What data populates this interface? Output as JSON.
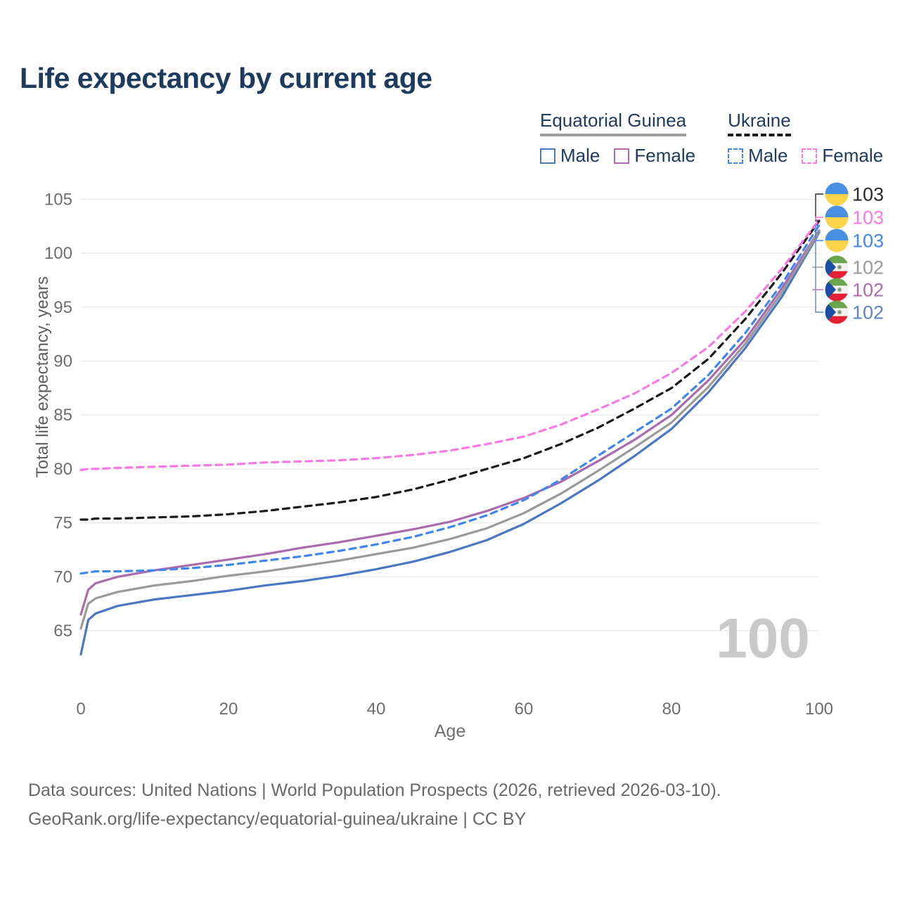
{
  "colors": {
    "background": "#ffffff",
    "title_text": "#1d3a5f",
    "legend_text": "#1e3a5f",
    "tick_text": "#6e6e6e",
    "gridline": "#ececec",
    "watermark_text": "#c9c9c9",
    "footer_text": "#696969"
  },
  "legend": {
    "groups": [
      {
        "label": "Equatorial Guinea",
        "line_style": "solid",
        "line_color": "#9e9e9e",
        "items": [
          {
            "label": "Male",
            "swatch_color": "#4a77c4",
            "swatch_style": "solid"
          },
          {
            "label": "Female",
            "swatch_color": "#b06ab0",
            "swatch_style": "solid"
          }
        ]
      },
      {
        "label": "Ukraine",
        "line_style": "dashed",
        "line_color": "#1a1a1a",
        "items": [
          {
            "label": "Male",
            "swatch_color": "#3f86f0",
            "swatch_style": "dashed"
          },
          {
            "label": "Female",
            "swatch_color": "#fa78e2",
            "swatch_style": "dashed"
          }
        ]
      }
    ]
  },
  "flags": {
    "ukraine": {
      "blue": "#4a90e2",
      "yellow": "#fbd44b"
    },
    "equatorial_guinea": {
      "green": "#6ba54a",
      "white": "#f2f2f2",
      "red": "#e32135",
      "blue": "#1b4fa5",
      "emblem": "#a8b098",
      "emblem_dark": "#6e7f5e"
    }
  },
  "chart_data": {
    "type": "line",
    "title": "Life expectancy by current age",
    "xlabel": "Age",
    "ylabel": "Total life expectancy, years",
    "xlim": [
      0,
      100
    ],
    "ylim": [
      62,
      106.5
    ],
    "x_ticks": [
      0,
      20,
      40,
      60,
      80,
      100
    ],
    "y_ticks": [
      65,
      70,
      75,
      80,
      85,
      90,
      95,
      100,
      105
    ],
    "grid": "horizontal",
    "legend_position": "top-right",
    "age_watermark": "100",
    "x": [
      0,
      1,
      2,
      5,
      10,
      15,
      20,
      25,
      30,
      35,
      40,
      45,
      50,
      55,
      60,
      65,
      70,
      75,
      80,
      85,
      90,
      95,
      100
    ],
    "series": [
      {
        "name": "Ukraine Female",
        "country": "Ukraine",
        "sex": "Female",
        "style": "dashed",
        "color": "#fa78e2",
        "values": [
          79.9,
          80.0,
          80.0,
          80.1,
          80.2,
          80.3,
          80.4,
          80.6,
          80.7,
          80.8,
          81.0,
          81.3,
          81.7,
          82.3,
          83.0,
          84.1,
          85.5,
          87.0,
          88.9,
          91.3,
          94.6,
          98.6,
          103.1
        ]
      },
      {
        "name": "Ukraine Total",
        "country": "Ukraine",
        "sex": "Total",
        "style": "dashed",
        "color": "#1a1a1a",
        "values": [
          75.3,
          75.3,
          75.4,
          75.4,
          75.5,
          75.6,
          75.8,
          76.1,
          76.5,
          76.9,
          77.4,
          78.1,
          79.0,
          80.0,
          81.0,
          82.3,
          83.8,
          85.6,
          87.5,
          90.2,
          93.9,
          98.2,
          103.0
        ]
      },
      {
        "name": "Ukraine Male",
        "country": "Ukraine",
        "sex": "Male",
        "style": "dashed",
        "color": "#3f86f0",
        "values": [
          70.3,
          70.4,
          70.5,
          70.5,
          70.6,
          70.8,
          71.1,
          71.5,
          71.9,
          72.4,
          73.0,
          73.7,
          74.6,
          75.7,
          77.1,
          79.0,
          81.2,
          83.4,
          85.6,
          88.7,
          92.6,
          97.2,
          102.6
        ]
      },
      {
        "name": "Equatorial Guinea Total",
        "country": "Equatorial Guinea",
        "sex": "Total",
        "style": "solid",
        "color": "#9a9a9a",
        "values": [
          65.2,
          67.5,
          68.0,
          68.6,
          69.2,
          69.6,
          70.1,
          70.5,
          71.0,
          71.5,
          72.1,
          72.7,
          73.5,
          74.5,
          75.9,
          77.7,
          79.8,
          82.0,
          84.3,
          87.6,
          91.6,
          96.4,
          102.0
        ]
      },
      {
        "name": "Equatorial Guinea Female",
        "country": "Equatorial Guinea",
        "sex": "Female",
        "style": "solid",
        "color": "#a96bad",
        "values": [
          66.5,
          68.8,
          69.4,
          70.0,
          70.6,
          71.1,
          71.6,
          72.1,
          72.7,
          73.2,
          73.8,
          74.4,
          75.1,
          76.1,
          77.3,
          78.8,
          80.7,
          82.7,
          85.0,
          88.2,
          92.0,
          96.8,
          102.1
        ]
      },
      {
        "name": "Equatorial Guinea Male",
        "country": "Equatorial Guinea",
        "sex": "Male",
        "style": "solid",
        "color": "#4a77c4",
        "values": [
          62.8,
          66.0,
          66.6,
          67.3,
          67.9,
          68.3,
          68.7,
          69.2,
          69.6,
          70.1,
          70.7,
          71.4,
          72.3,
          73.4,
          74.9,
          76.8,
          78.9,
          81.2,
          83.7,
          87.1,
          91.2,
          96.0,
          101.9
        ]
      }
    ],
    "end_labels": [
      {
        "series": "Ukraine Total",
        "value": "103",
        "color": "#2a2a2a",
        "flag": "ukraine-flag-icon"
      },
      {
        "series": "Ukraine Female",
        "value": "103",
        "color": "#fa78e2",
        "flag": "ukraine-flag-icon"
      },
      {
        "series": "Ukraine Male",
        "value": "103",
        "color": "#3f86f0",
        "flag": "ukraine-flag-icon"
      },
      {
        "series": "Equatorial Guinea Total",
        "value": "102",
        "color": "#9a9a9a",
        "flag": "equatorial-guinea-flag-icon"
      },
      {
        "series": "Equatorial Guinea Female",
        "value": "102",
        "color": "#b06ab0",
        "flag": "equatorial-guinea-flag-icon"
      },
      {
        "series": "Equatorial Guinea Male",
        "value": "102",
        "color": "#5b85c8",
        "flag": "equatorial-guinea-flag-icon"
      }
    ]
  },
  "footer": {
    "lines": [
      "Data sources: United Nations | World Population Prospects (2026, retrieved 2026-03-10).",
      "GeoRank.org/life-expectancy/equatorial-guinea/ukraine | CC BY"
    ]
  }
}
